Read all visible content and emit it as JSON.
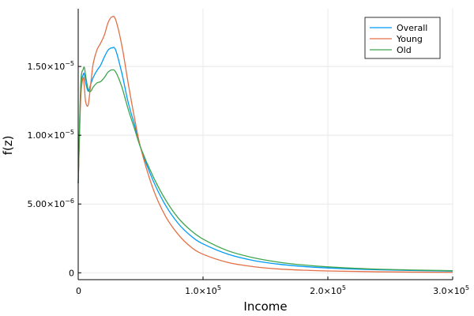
{
  "chart_data": {
    "type": "line",
    "xlabel": "Income",
    "ylabel": "f(z)",
    "xlim": [
      0,
      300000
    ],
    "ylim": [
      -5e-07,
      1.92e-05
    ],
    "grid": true,
    "legend_position": "top-right",
    "x_ticks": [
      {
        "value": 0,
        "mantissa": "0",
        "exponent": ""
      },
      {
        "value": 100000,
        "mantissa": "1.0×10",
        "exponent": "5"
      },
      {
        "value": 200000,
        "mantissa": "2.0×10",
        "exponent": "5"
      },
      {
        "value": 300000,
        "mantissa": "3.0×10",
        "exponent": "5"
      }
    ],
    "y_ticks": [
      {
        "value": 0,
        "mantissa": "0",
        "exponent": ""
      },
      {
        "value": 5e-06,
        "mantissa": "5.00×10",
        "exponent": "−6"
      },
      {
        "value": 1e-05,
        "mantissa": "1.00×10",
        "exponent": "−5"
      },
      {
        "value": 1.5e-05,
        "mantissa": "1.50×10",
        "exponent": "−5"
      }
    ],
    "x": [
      0,
      2000,
      4000,
      5000,
      6000,
      8000,
      10000,
      12000,
      15000,
      18000,
      21000,
      24000,
      27000,
      30000,
      35000,
      40000,
      45000,
      50000,
      60000,
      70000,
      80000,
      90000,
      100000,
      120000,
      140000,
      160000,
      180000,
      200000,
      240000,
      300000
    ],
    "series": [
      {
        "name": "Overall",
        "color": "#009AFA",
        "values": [
          6.5e-06,
          1.32e-05,
          1.44e-05,
          1.44e-05,
          1.38e-05,
          1.32e-05,
          1.37e-05,
          1.42e-05,
          1.47e-05,
          1.51e-05,
          1.57e-05,
          1.62e-05,
          1.635e-05,
          1.62e-05,
          1.45e-05,
          1.24e-05,
          1.08e-05,
          9.1e-06,
          6.7e-06,
          4.9e-06,
          3.6e-06,
          2.7e-06,
          2.1e-06,
          1.35e-06,
          9e-07,
          6.3e-07,
          4.6e-07,
          3.5e-07,
          2.2e-07,
          1.2e-07
        ]
      },
      {
        "name": "Young",
        "color": "#E26F46",
        "values": [
          6.5e-06,
          1.26e-05,
          1.42e-05,
          1.34e-05,
          1.24e-05,
          1.22e-05,
          1.37e-05,
          1.52e-05,
          1.62e-05,
          1.67e-05,
          1.73e-05,
          1.82e-05,
          1.86e-05,
          1.84e-05,
          1.65e-05,
          1.38e-05,
          1.13e-05,
          9.1e-06,
          6.1e-06,
          4.1e-06,
          2.8e-06,
          1.9e-06,
          1.35e-06,
          7.5e-07,
          4.5e-07,
          2.8e-07,
          1.9e-07,
          1.3e-07,
          7e-08,
          3e-08
        ]
      },
      {
        "name": "Old",
        "color": "#3DA44D",
        "values": [
          6.5e-06,
          1.36e-05,
          1.48e-05,
          1.49e-05,
          1.43e-05,
          1.33e-05,
          1.32e-05,
          1.35e-05,
          1.38e-05,
          1.39e-05,
          1.42e-05,
          1.46e-05,
          1.475e-05,
          1.46e-05,
          1.35e-05,
          1.19e-05,
          1.05e-05,
          9.1e-06,
          7e-06,
          5.3e-06,
          4e-06,
          3.1e-06,
          2.45e-06,
          1.6e-06,
          1.1e-06,
          7.8e-07,
          5.7e-07,
          4.3e-07,
          2.6e-07,
          1.5e-07
        ]
      }
    ]
  }
}
